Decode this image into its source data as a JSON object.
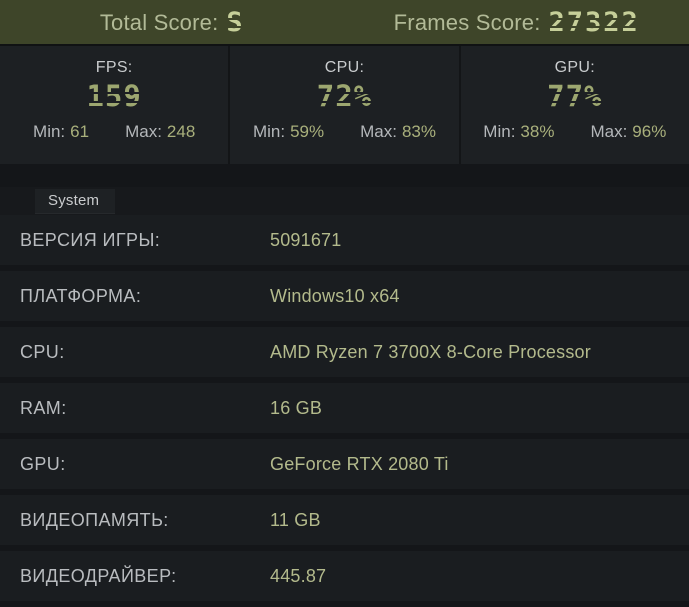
{
  "header": {
    "total_score_label": "Total Score:",
    "total_score_value": "S",
    "frames_score_label": "Frames Score:",
    "frames_score_value": "27322"
  },
  "stats": [
    {
      "label": "FPS:",
      "value": "159",
      "min_label": "Min:",
      "min_value": "61",
      "max_label": "Max:",
      "max_value": "248"
    },
    {
      "label": "CPU:",
      "value": "72%",
      "min_label": "Min:",
      "min_value": "59%",
      "max_label": "Max:",
      "max_value": "83%"
    },
    {
      "label": "GPU:",
      "value": "77%",
      "min_label": "Min:",
      "min_value": "38%",
      "max_label": "Max:",
      "max_value": "96%"
    }
  ],
  "tabs": {
    "system_label": "System"
  },
  "system_table": {
    "rows": [
      {
        "label": "ВЕРСИЯ ИГРЫ:",
        "value": "5091671"
      },
      {
        "label": "ПЛАТФОРМА:",
        "value": "Windows10 x64"
      },
      {
        "label": "CPU:",
        "value": "AMD Ryzen 7 3700X 8-Core Processor"
      },
      {
        "label": "RAM:",
        "value": "16 GB"
      },
      {
        "label": "GPU:",
        "value": "GeForce RTX 2080 Ti"
      },
      {
        "label": "ВИДЕОПАМЯТЬ:",
        "value": "11 GB"
      },
      {
        "label": "ВИДЕОДРАЙВЕР:",
        "value": "445.87"
      }
    ]
  },
  "colors": {
    "header_bg": "#3e4529",
    "panel_bg": "#1d2023",
    "page_bg": "#17191c",
    "accent_olive_bright": "#c6cf99",
    "accent_olive": "#9da770",
    "value_olive": "#b3ba8c",
    "label_gray": "#b9bcbf"
  }
}
